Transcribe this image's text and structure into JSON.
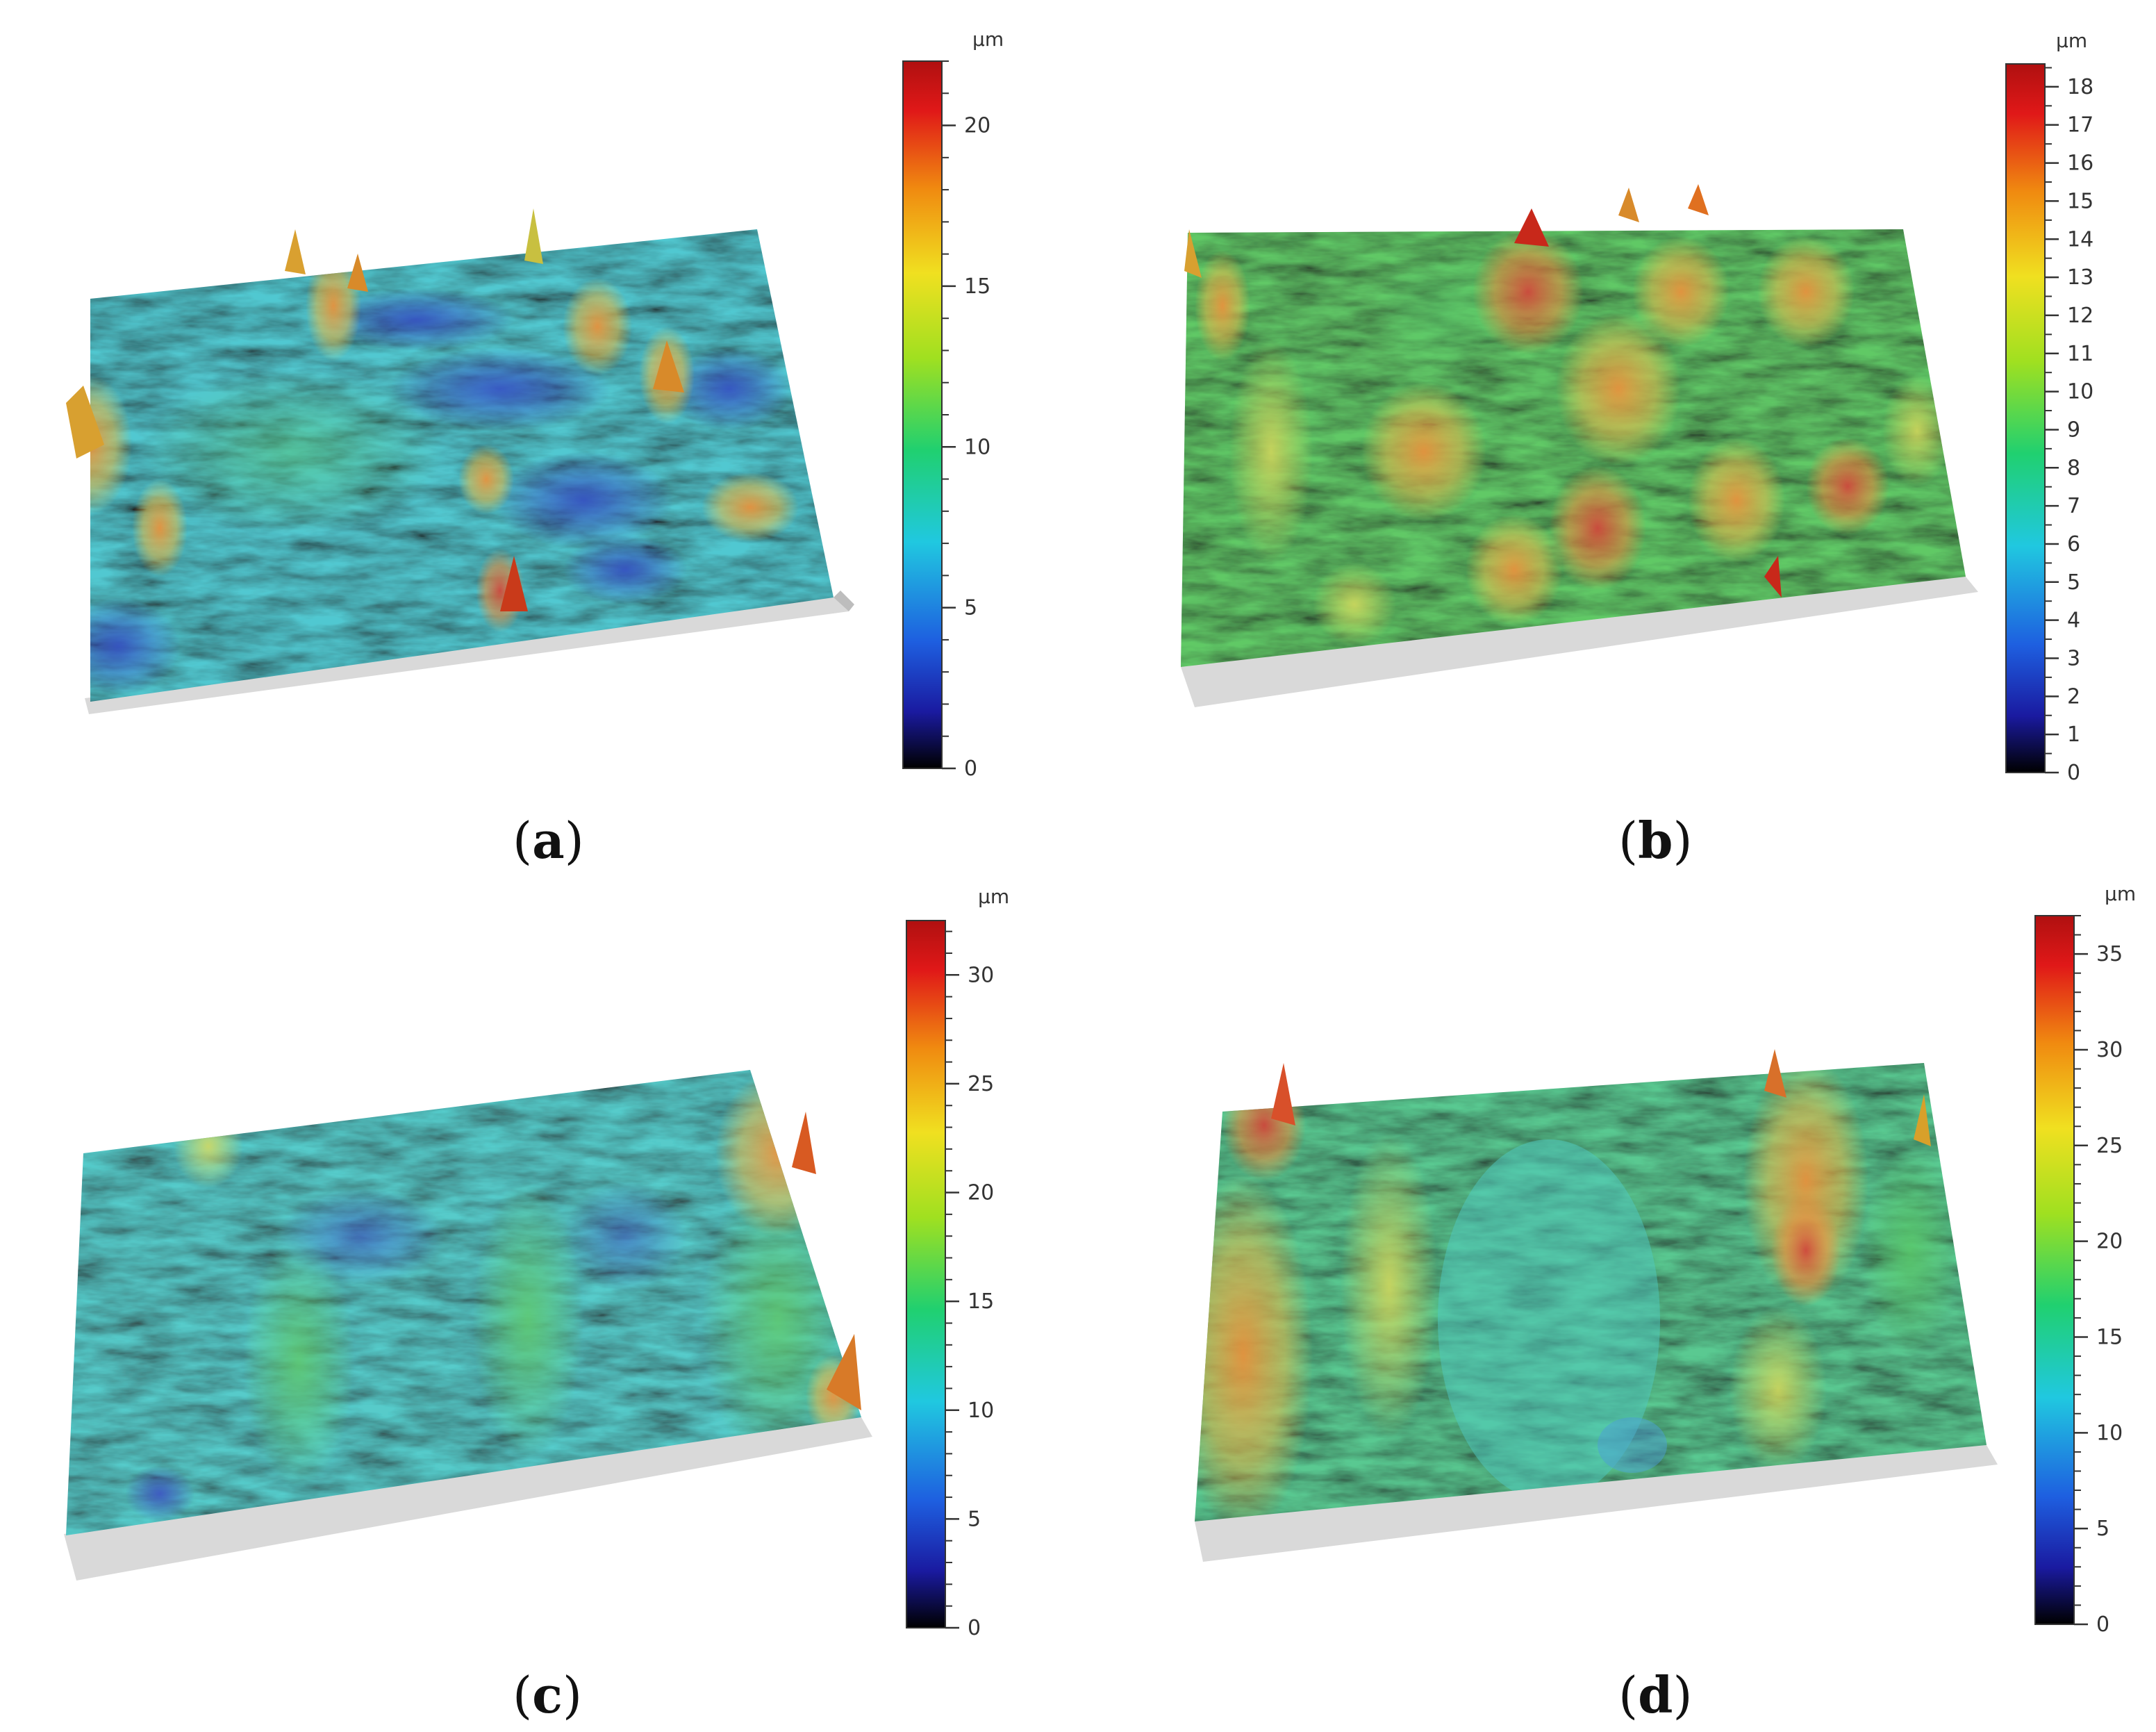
{
  "panels": [
    {
      "id": "a",
      "label": "a",
      "unit": "µm",
      "colorbar_max": 22,
      "ticks": [
        "0",
        "5",
        "10",
        "15",
        "20"
      ],
      "tick_values": [
        0,
        5,
        10,
        15,
        20
      ],
      "dominant_colors": [
        "#2bbfd0",
        "#1e5fd6",
        "#4fc0a0",
        "#e0a030"
      ]
    },
    {
      "id": "b",
      "label": "b",
      "unit": "µm",
      "colorbar_max": 18.6,
      "ticks": [
        "0",
        "1",
        "2",
        "3",
        "4",
        "5",
        "6",
        "7",
        "8",
        "9",
        "10",
        "11",
        "12",
        "13",
        "14",
        "15",
        "16",
        "17",
        "18"
      ],
      "tick_values": [
        0,
        1,
        2,
        3,
        4,
        5,
        6,
        7,
        8,
        9,
        10,
        11,
        12,
        13,
        14,
        15,
        16,
        17,
        18
      ],
      "dominant_colors": [
        "#3fbf4a",
        "#8ed23a",
        "#e0a030",
        "#d33a1e"
      ]
    },
    {
      "id": "c",
      "label": "c",
      "unit": "µm",
      "colorbar_max": 32.5,
      "ticks": [
        "0",
        "5",
        "10",
        "15",
        "20",
        "25",
        "30"
      ],
      "tick_values": [
        0,
        5,
        10,
        15,
        20,
        25,
        30
      ],
      "dominant_colors": [
        "#2fc0b8",
        "#2b8fd0",
        "#5cc460",
        "#e08a30"
      ]
    },
    {
      "id": "d",
      "label": "d",
      "unit": "µm",
      "colorbar_max": 37,
      "ticks": [
        "0",
        "5",
        "10",
        "15",
        "20",
        "25",
        "30",
        "35"
      ],
      "tick_values": [
        0,
        5,
        10,
        15,
        20,
        25,
        30,
        35
      ],
      "dominant_colors": [
        "#3cc07a",
        "#2fc0b8",
        "#c8d040",
        "#e07a2a"
      ]
    }
  ],
  "colormap": [
    "#000000",
    "#1a1aa0",
    "#1e5fe0",
    "#20c8e0",
    "#20d070",
    "#a0e020",
    "#f0e020",
    "#f08a10",
    "#e01818",
    "#b01010"
  ]
}
